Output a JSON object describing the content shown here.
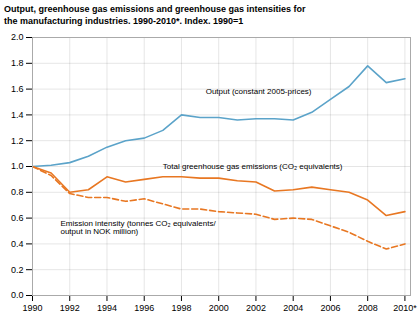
{
  "chart_data": {
    "type": "line",
    "title": "Output, greenhouse gas emissions and greenhouse gas intensities for\nthe manufacturing industries. 1990-2010*. Index. 1990=1",
    "x": [
      1990,
      1991,
      1992,
      1993,
      1994,
      1995,
      1996,
      1997,
      1998,
      1999,
      2000,
      2001,
      2002,
      2003,
      2004,
      2005,
      2006,
      2007,
      2008,
      2009,
      2010
    ],
    "series": [
      {
        "name": "Output (constant 2005-prices)",
        "color": "#5ba3c9",
        "line_style": "solid",
        "values": [
          1.0,
          1.01,
          1.03,
          1.08,
          1.15,
          1.2,
          1.22,
          1.28,
          1.4,
          1.38,
          1.38,
          1.36,
          1.37,
          1.37,
          1.36,
          1.42,
          1.52,
          1.62,
          1.78,
          1.65,
          1.68
        ]
      },
      {
        "name": "Total greenhouse gas emissions (CO₂ equivalents)",
        "color": "#e87722",
        "line_style": "solid",
        "values": [
          1.0,
          0.95,
          0.8,
          0.82,
          0.92,
          0.88,
          0.9,
          0.92,
          0.92,
          0.91,
          0.91,
          0.89,
          0.88,
          0.81,
          0.82,
          0.84,
          0.82,
          0.8,
          0.74,
          0.62,
          0.65
        ]
      },
      {
        "name": "Emission intensity (tonnes CO₂ equivalents/\noutput in NOK million)",
        "color": "#e87722",
        "line_style": "dashed",
        "values": [
          1.0,
          0.93,
          0.79,
          0.76,
          0.76,
          0.73,
          0.75,
          0.71,
          0.67,
          0.67,
          0.65,
          0.64,
          0.63,
          0.59,
          0.6,
          0.59,
          0.54,
          0.49,
          0.42,
          0.36,
          0.4
        ]
      }
    ],
    "xlim": [
      1990,
      2010.3
    ],
    "xticks": [
      1990,
      1992,
      1994,
      1996,
      1998,
      2000,
      2002,
      2004,
      2006,
      2008,
      {
        "value": 2010,
        "label": "2010*"
      }
    ],
    "ylim": [
      0.0,
      2.0
    ],
    "yticks": [
      {
        "value": 0,
        "label": "0.0"
      },
      0.2,
      0.4,
      0.6,
      0.8,
      {
        "value": 1,
        "label": "1.0"
      },
      1.2,
      1.4,
      1.6,
      1.8,
      {
        "value": 2,
        "label": "2.0"
      }
    ],
    "grid": true
  }
}
